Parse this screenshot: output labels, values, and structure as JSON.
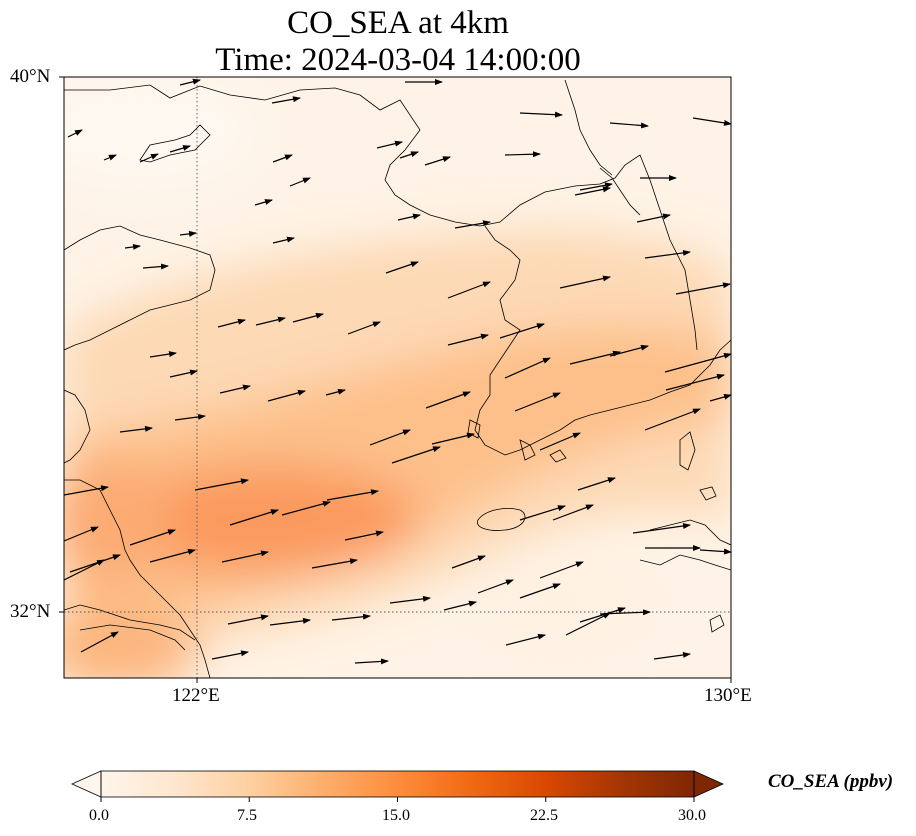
{
  "title_line1": "CO_SEA at 4km",
  "title_line2": "Time: 2024-03-04 14:00:00",
  "axes": {
    "lat_ticks": [
      {
        "value": 40,
        "label": "40°N"
      },
      {
        "value": 32,
        "label": "32°N"
      }
    ],
    "lon_ticks": [
      {
        "value": 122,
        "label": "122°E"
      },
      {
        "value": 130,
        "label": "130°E"
      }
    ],
    "lon_range": [
      120,
      130
    ],
    "lat_range": [
      31,
      40
    ],
    "gridlines": "dotted at 122°E and 32°N"
  },
  "colorbar": {
    "label": "CO_SEA (ppbv)",
    "ticks": [
      "0.0",
      "7.5",
      "15.0",
      "22.5",
      "30.0"
    ],
    "range": [
      0,
      30
    ],
    "extend": "both",
    "colormap": [
      "#fff5eb",
      "#fee6ce",
      "#fdd0a2",
      "#fdae6b",
      "#fd8d3c",
      "#f16913",
      "#d94801",
      "#a63603",
      "#7f2704"
    ]
  },
  "colors": {
    "coast": "#000000",
    "wind_arrow": "#000000"
  },
  "field_description": "CO concentration shading with wind vectors over Yellow Sea, Korea and East China Sea"
}
